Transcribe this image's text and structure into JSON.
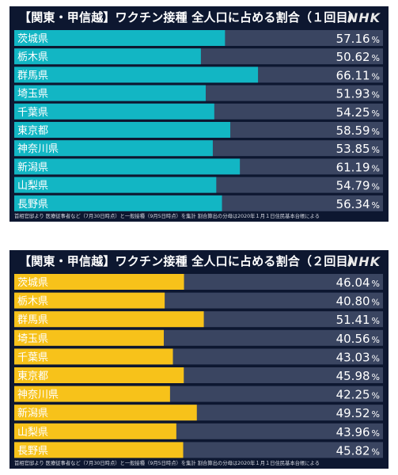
{
  "chart_data": [
    {
      "type": "bar",
      "title": "【関東・甲信越】ワクチン接種 全人口に占める割合（１回目）",
      "logo": "NHK",
      "categories": [
        "茨城県",
        "栃木県",
        "群馬県",
        "埼玉県",
        "千葉県",
        "東京都",
        "神奈川県",
        "新潟県",
        "山梨県",
        "長野県"
      ],
      "values": [
        57.16,
        50.62,
        66.11,
        51.93,
        54.25,
        58.59,
        53.85,
        61.19,
        54.79,
        56.34
      ],
      "value_labels": [
        "57.16",
        "50.62",
        "66.11",
        "51.93",
        "54.25",
        "58.59",
        "53.85",
        "61.19",
        "54.79",
        "56.34"
      ],
      "unit": "%",
      "xlim": [
        0,
        100
      ],
      "bar_color": "#12b6c4",
      "track_color": "#3a4561",
      "note": "首相官邸より 医療従事者など（7月30日時点）と一般接種（9月5日時点）を集計 割合算出の分母は2020年１月１日住民基本台帳による"
    },
    {
      "type": "bar",
      "title": "【関東・甲信越】ワクチン接種 全人口に占める割合（２回目）",
      "logo": "NHK",
      "categories": [
        "茨城県",
        "栃木県",
        "群馬県",
        "埼玉県",
        "千葉県",
        "東京都",
        "神奈川県",
        "新潟県",
        "山梨県",
        "長野県"
      ],
      "values": [
        46.04,
        40.8,
        51.41,
        40.56,
        43.03,
        45.98,
        42.25,
        49.52,
        43.96,
        45.82
      ],
      "value_labels": [
        "46.04",
        "40.80",
        "51.41",
        "40.56",
        "43.03",
        "45.98",
        "42.25",
        "49.52",
        "43.96",
        "45.82"
      ],
      "unit": "%",
      "xlim": [
        0,
        100
      ],
      "bar_color": "#f7c21a",
      "track_color": "#3a4561",
      "note": "首相官邸より 医療従事者など（7月30日時点）と一般接種（9月5日時点）を集計 割合算出の分母は2020年１月１日住民基本台帳による"
    }
  ]
}
